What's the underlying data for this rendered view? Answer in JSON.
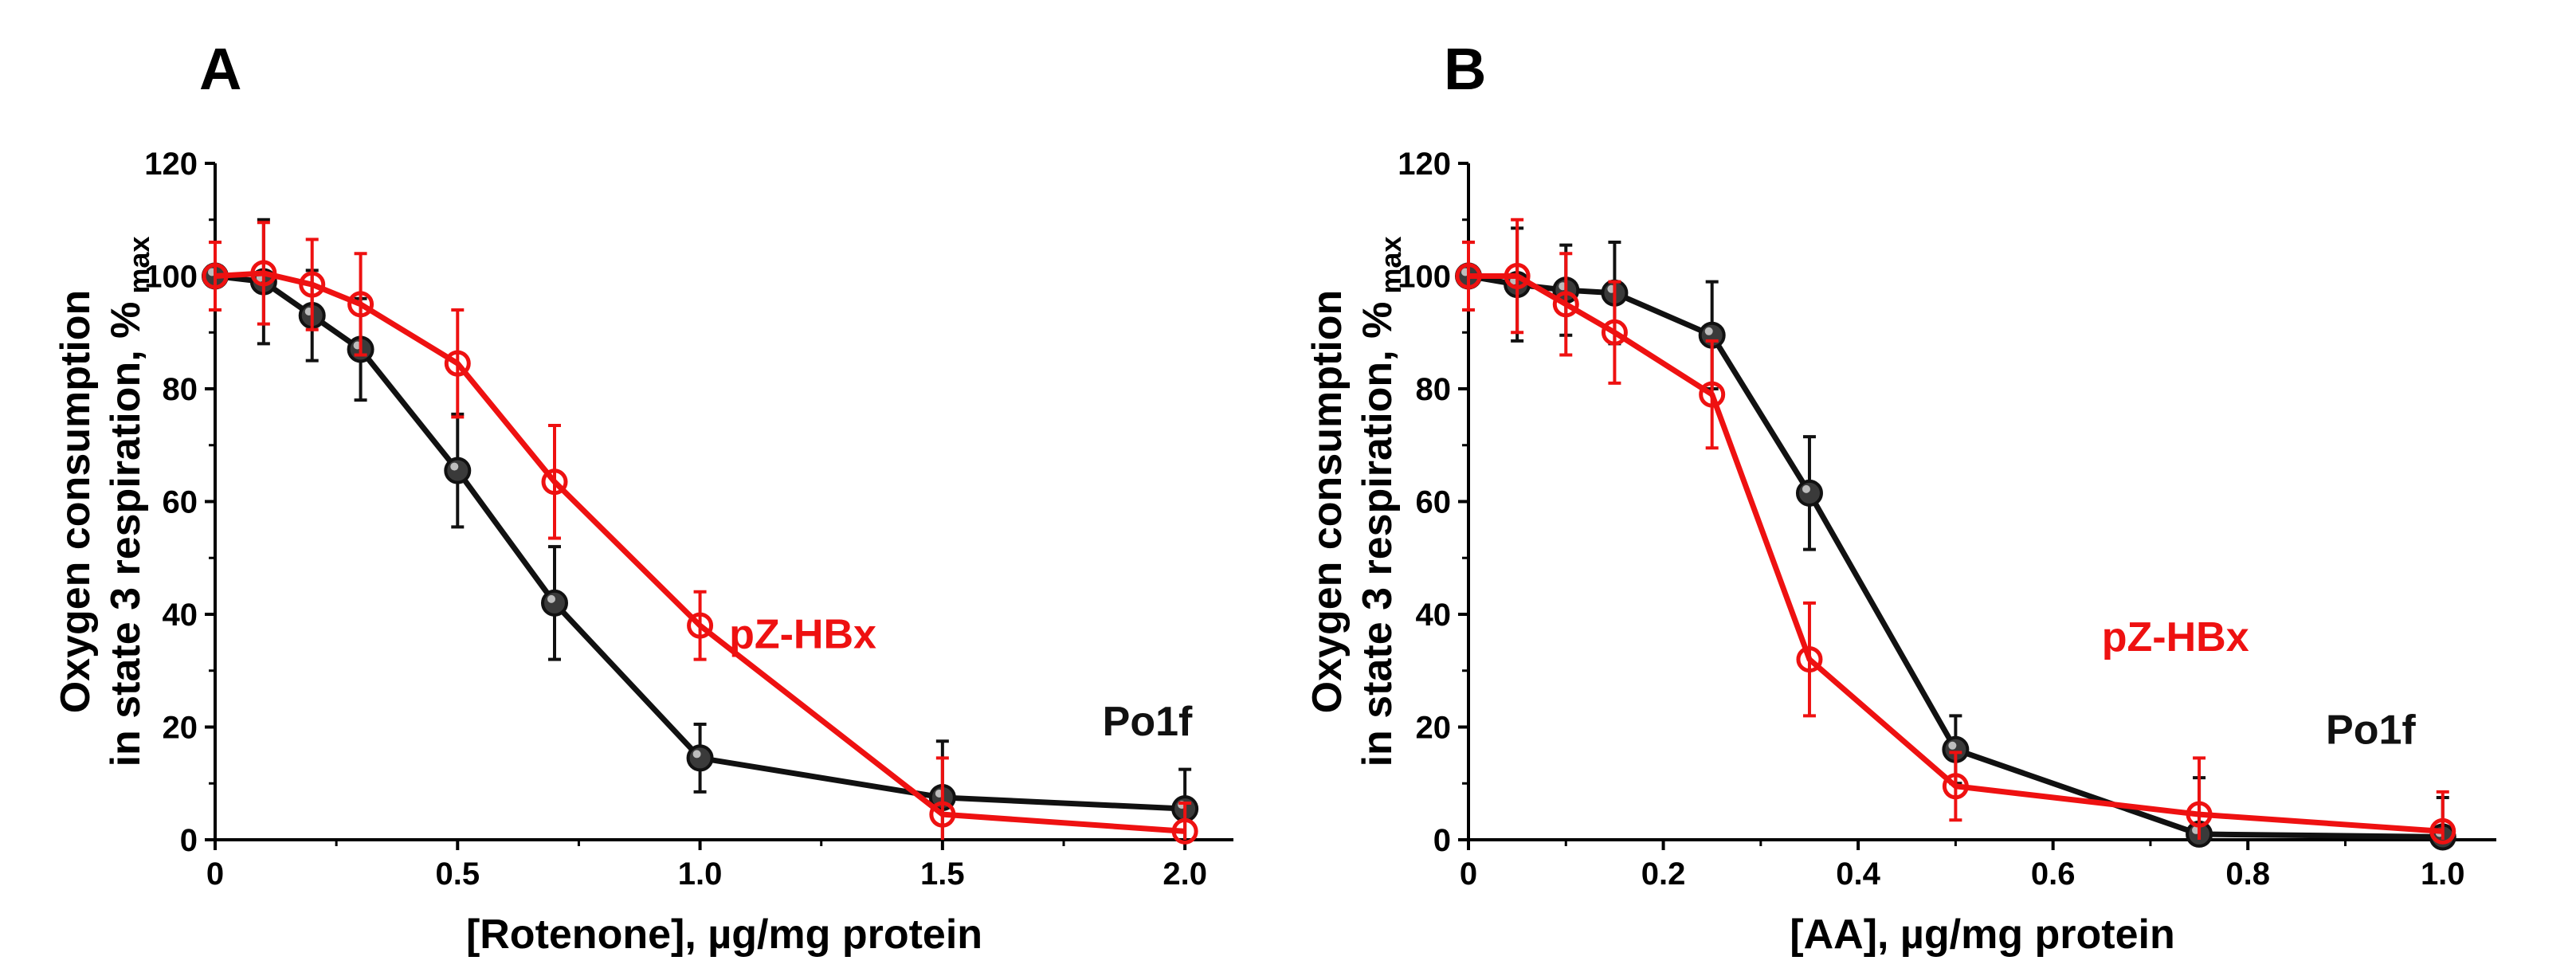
{
  "colors": {
    "black_series": "#111111",
    "red_series": "#ee1111",
    "axis": "#000000"
  },
  "ylabel_main_1": "Oxygen consumption",
  "ylabel_main_2": "in state 3 respiration, %",
  "ylabel_sub": "max",
  "chart_data": [
    {
      "type": "line",
      "panel_letter": "A",
      "title": "",
      "xlabel": "[Rotenone], µg/mg protein",
      "ylabel": "Oxygen consumption in state 3 respiration, % max",
      "xlim": [
        0,
        2.1
      ],
      "ylim": [
        0,
        120
      ],
      "xticks": [
        0,
        0.5,
        1.0,
        1.5,
        2.0
      ],
      "xtick_labels": [
        "0",
        "0.5",
        "1.0",
        "1.5",
        "2.0"
      ],
      "yticks": [
        0,
        20,
        40,
        60,
        80,
        100,
        120
      ],
      "ytick_labels": [
        "0",
        "20",
        "40",
        "60",
        "80",
        "100",
        "120"
      ],
      "series": [
        {
          "name": "Po1f",
          "color": "#111111",
          "x": [
            0,
            0.1,
            0.2,
            0.3,
            0.5,
            0.7,
            1.0,
            1.5,
            2.0
          ],
          "y": [
            100,
            99,
            93,
            87,
            65.5,
            42,
            14.5,
            7.5,
            5.5
          ],
          "err": [
            6,
            11,
            8,
            9,
            10,
            10,
            6,
            10,
            7
          ]
        },
        {
          "name": "pZ-HBx",
          "color": "#ee1111",
          "x": [
            0,
            0.1,
            0.2,
            0.3,
            0.5,
            0.7,
            1.0,
            1.5,
            2.0
          ],
          "y": [
            100,
            100.5,
            98.5,
            95,
            84.5,
            63.5,
            38,
            4.5,
            1.5
          ],
          "err": [
            6,
            9,
            8,
            9,
            9.5,
            10,
            6,
            10,
            5
          ]
        }
      ],
      "annotations": [
        {
          "text": "pZ-HBx",
          "series": "pZ-HBx",
          "x": 1.06,
          "y": 34
        },
        {
          "text": "Po1f",
          "series": "Po1f",
          "x": 1.83,
          "y": 18.5
        }
      ]
    },
    {
      "type": "line",
      "panel_letter": "B",
      "title": "",
      "xlabel": "[AA], µg/mg protein",
      "ylabel": "Oxygen consumption in state 3 respiration, % max",
      "xlim": [
        0,
        1.055
      ],
      "ylim": [
        0,
        120
      ],
      "xticks": [
        0,
        0.2,
        0.4,
        0.6,
        0.8,
        1.0
      ],
      "xtick_labels": [
        "0",
        "0.2",
        "0.4",
        "0.6",
        "0.8",
        "1.0"
      ],
      "yticks": [
        0,
        20,
        40,
        60,
        80,
        100,
        120
      ],
      "ytick_labels": [
        "0",
        "20",
        "40",
        "60",
        "80",
        "100",
        "120"
      ],
      "series": [
        {
          "name": "Po1f",
          "color": "#111111",
          "x": [
            0,
            0.05,
            0.1,
            0.15,
            0.25,
            0.35,
            0.5,
            0.75,
            1.0
          ],
          "y": [
            100,
            98.5,
            97.5,
            97,
            89.5,
            61.5,
            16,
            1,
            0.5
          ],
          "err": [
            6,
            10,
            8,
            9,
            9.5,
            10,
            6,
            10,
            7
          ]
        },
        {
          "name": "pZ-HBx",
          "color": "#ee1111",
          "x": [
            0,
            0.05,
            0.1,
            0.15,
            0.25,
            0.35,
            0.5,
            0.75,
            1.0
          ],
          "y": [
            100,
            100,
            95,
            90,
            79,
            32,
            9.5,
            4.5,
            1.5
          ],
          "err": [
            6,
            10,
            9,
            9,
            9.5,
            10,
            6,
            10,
            7
          ]
        }
      ],
      "annotations": [
        {
          "text": "pZ-HBx",
          "series": "pZ-HBx",
          "x": 0.65,
          "y": 33.5
        },
        {
          "text": "Po1f",
          "series": "Po1f",
          "x": 0.88,
          "y": 17
        }
      ]
    }
  ]
}
